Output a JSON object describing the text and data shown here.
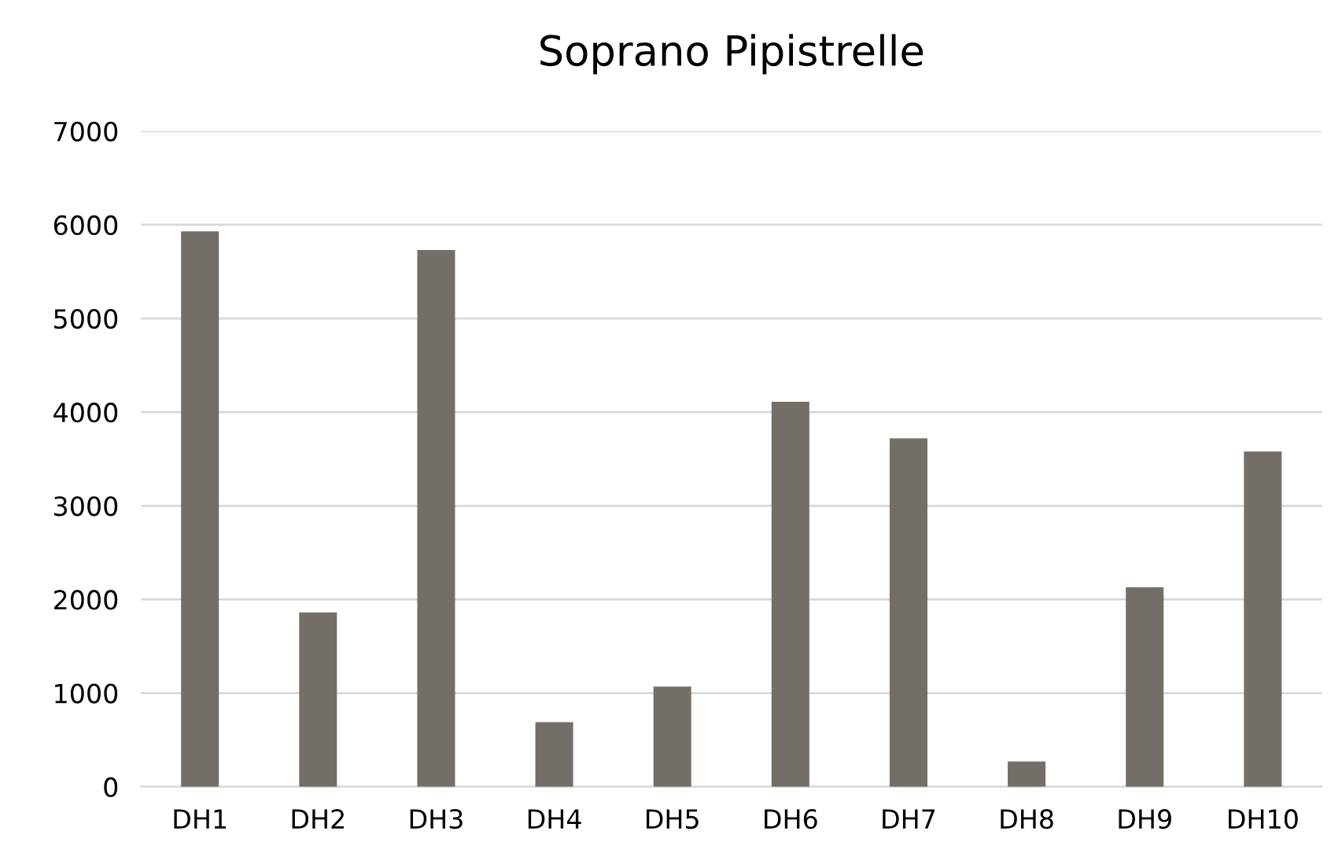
{
  "chart_data": {
    "type": "bar",
    "title": "Soprano Pipistrelle",
    "categories": [
      "DH1",
      "DH2",
      "DH3",
      "DH4",
      "DH5",
      "DH6",
      "DH7",
      "DH8",
      "DH9",
      "DH10"
    ],
    "values": [
      5930,
      1860,
      5730,
      690,
      1070,
      4110,
      3720,
      270,
      2130,
      3580
    ],
    "color": "#736e68",
    "ylim": [
      0,
      7000
    ],
    "yticks": [
      0,
      1000,
      2000,
      3000,
      4000,
      5000,
      6000,
      7000
    ],
    "grid": "y"
  }
}
